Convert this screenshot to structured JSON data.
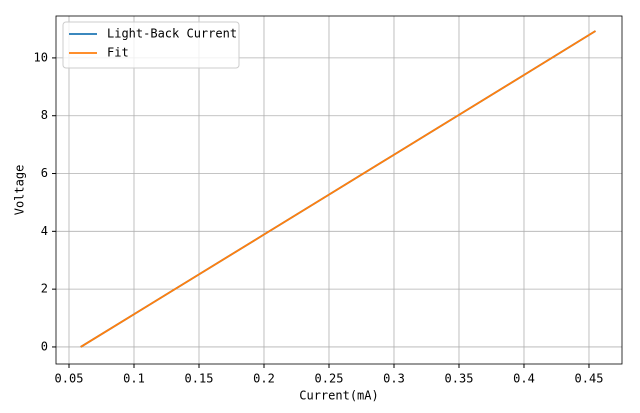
{
  "chart_data": {
    "type": "line",
    "x": [
      0.059,
      0.1,
      0.15,
      0.2,
      0.25,
      0.3,
      0.35,
      0.4,
      0.455
    ],
    "series": [
      {
        "name": "Light-Back Current",
        "color": "#1f77b4",
        "values": [
          0,
          1.13,
          2.51,
          3.89,
          5.27,
          6.65,
          8.03,
          9.41,
          10.93
        ]
      },
      {
        "name": "Fit",
        "color": "#ff7f0e",
        "values": [
          0,
          1.13,
          2.51,
          3.89,
          5.27,
          6.65,
          8.03,
          9.41,
          10.93
        ]
      }
    ],
    "x_label": "Current(mA)",
    "y_label": "Voltage",
    "xlim": [
      0.04,
      0.4754
    ],
    "ylim": [
      -0.59,
      11.45
    ],
    "xticks": [
      0.05,
      0.1,
      0.15,
      0.2,
      0.25,
      0.3,
      0.35,
      0.4,
      0.45
    ],
    "yticks": [
      0,
      2,
      4,
      6,
      8,
      10
    ],
    "grid": true,
    "legend": "upper left"
  }
}
